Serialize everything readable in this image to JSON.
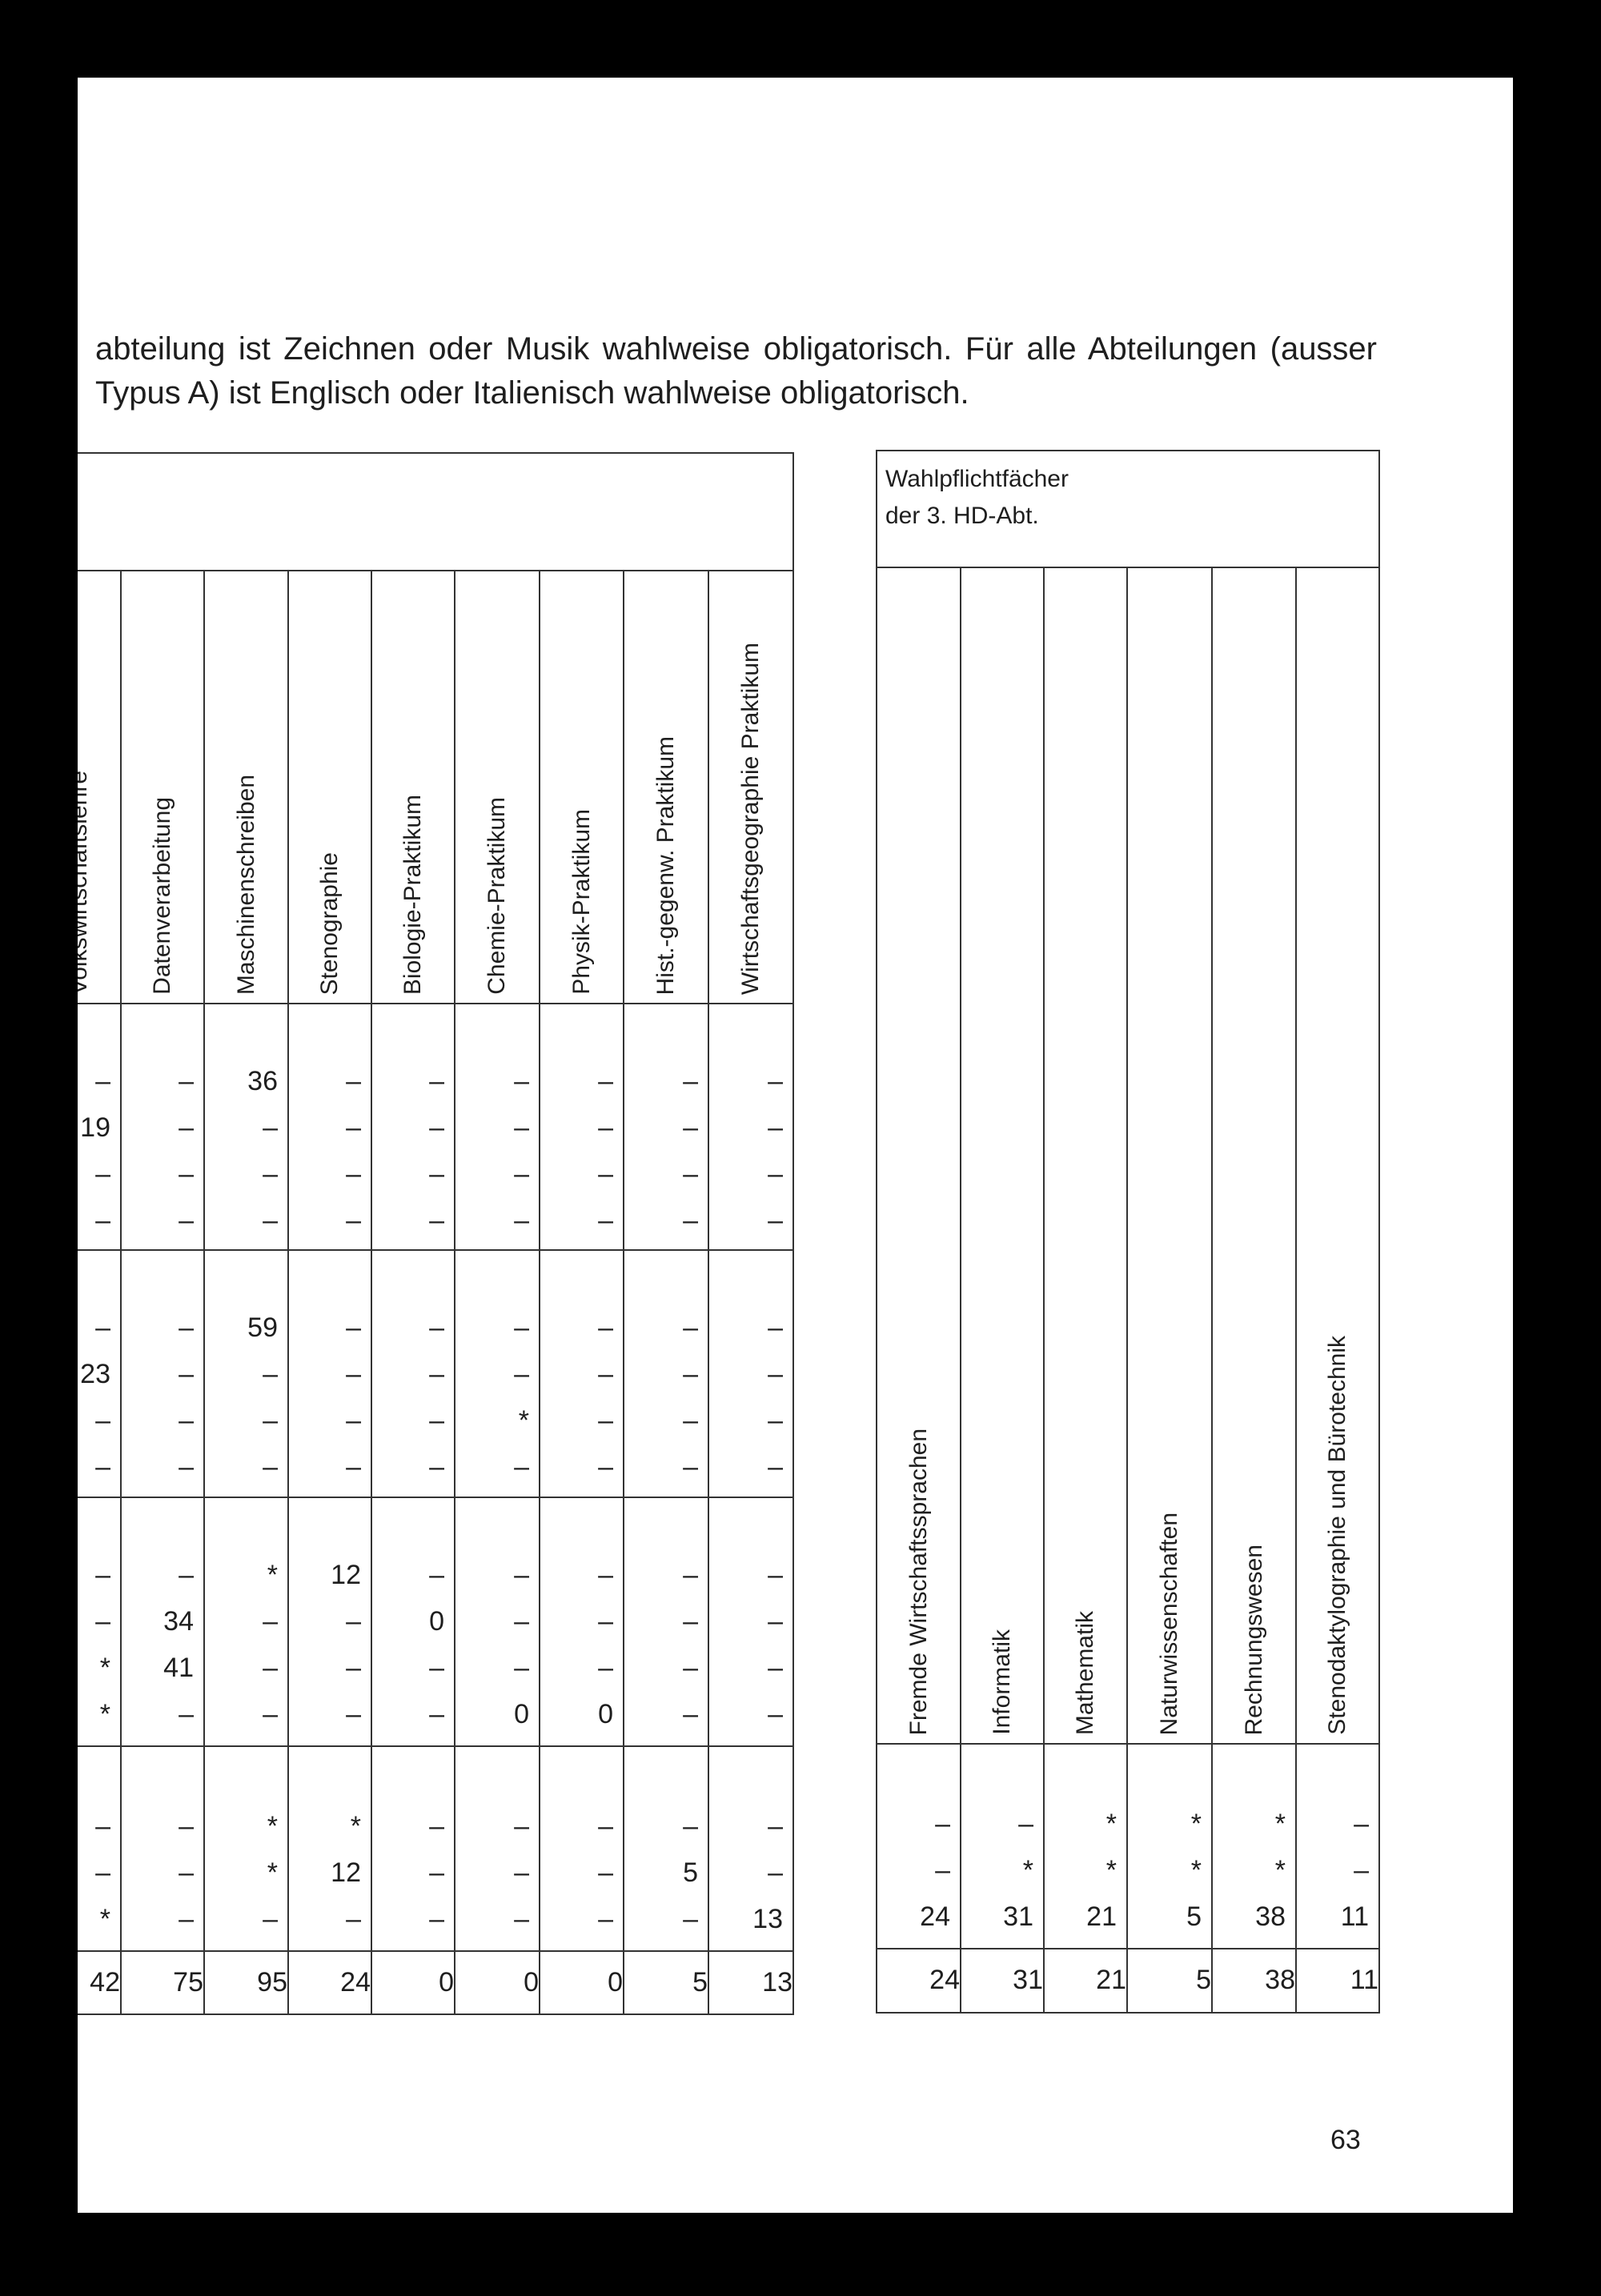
{
  "intro": "abteilung ist Zeichnen oder Musik wahlweise obligatorisch. Für alle Abteilungen (ausser Typus A) ist Englisch oder Italienisch wahlweise obligatorisch.",
  "left_table": {
    "columns": [
      "Volkswirtschaftslehre",
      "Datenverarbeitung",
      "Maschinenschreiben",
      "Stenographie",
      "Biologie-Praktikum",
      "Chemie-Praktikum",
      "Physik-Praktikum",
      "Hist.-gegenw. Praktikum",
      "Wirtschaftsgeographie Praktikum"
    ],
    "groups": [
      [
        [
          "–",
          "–",
          "36",
          "–",
          "–",
          "–",
          "–",
          "–",
          "–"
        ],
        [
          "19",
          "–",
          "–",
          "–",
          "–",
          "–",
          "–",
          "–",
          "–"
        ],
        [
          "–",
          "–",
          "–",
          "–",
          "–",
          "–",
          "–",
          "–",
          "–"
        ],
        [
          "–",
          "–",
          "–",
          "–",
          "–",
          "–",
          "–",
          "–",
          "–"
        ]
      ],
      [
        [
          "–",
          "–",
          "59",
          "–",
          "–",
          "–",
          "–",
          "–",
          "–"
        ],
        [
          "23",
          "–",
          "–",
          "–",
          "–",
          "–",
          "–",
          "–",
          "–"
        ],
        [
          "–",
          "–",
          "–",
          "–",
          "–",
          "*",
          "–",
          "–",
          "–"
        ],
        [
          "–",
          "–",
          "–",
          "–",
          "–",
          "–",
          "–",
          "–",
          "–"
        ]
      ],
      [
        [
          "–",
          "–",
          "*",
          "12",
          "–",
          "–",
          "–",
          "–",
          "–"
        ],
        [
          "–",
          "34",
          "–",
          "–",
          "0",
          "–",
          "–",
          "–",
          "–"
        ],
        [
          "*",
          "41",
          "–",
          "–",
          "–",
          "–",
          "–",
          "–",
          "–"
        ],
        [
          "*",
          "–",
          "–",
          "–",
          "–",
          "0",
          "0",
          "–",
          "–"
        ]
      ],
      [
        [
          "–",
          "–",
          "*",
          "*",
          "–",
          "–",
          "–",
          "–",
          "–"
        ],
        [
          "–",
          "–",
          "*",
          "12",
          "–",
          "–",
          "–",
          "5",
          "–"
        ],
        [
          "*",
          "–",
          "–",
          "–",
          "–",
          "–",
          "–",
          "–",
          "13"
        ]
      ]
    ],
    "totals": [
      "42",
      "75",
      "95",
      "24",
      "0",
      "0",
      "0",
      "5",
      "13"
    ]
  },
  "right_table": {
    "title_line1": "Wahlpflichtfächer",
    "title_line2": "der 3. HD-Abt.",
    "columns": [
      "Fremde Wirtschaftssprachen",
      "Informatik",
      "Mathematik",
      "Naturwissenschaften",
      "Rechnungswesen",
      "Stenodaktylographie und Bürotechnik"
    ],
    "groups": [
      [
        [
          "–",
          "–",
          "*",
          "*",
          "*",
          "–"
        ],
        [
          "–",
          "*",
          "*",
          "*",
          "*",
          "–"
        ],
        [
          "24",
          "31",
          "21",
          "5",
          "38",
          "11"
        ]
      ]
    ],
    "totals": [
      "24",
      "31",
      "21",
      "5",
      "38",
      "11"
    ]
  },
  "page_number": "63"
}
